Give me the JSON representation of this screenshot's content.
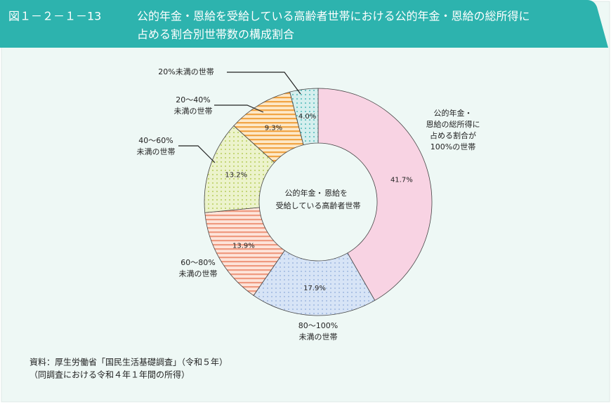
{
  "chart_data": {
    "type": "donut",
    "figure_number": "図１－２－１－13",
    "title_lines": [
      "公的年金・恩給を受給している高齢者世帯における公的年金・恩給の総所得に",
      "占める割合別世帯数の構成割合"
    ],
    "center_label": [
      "公的年金・",
      "恩給を",
      "受給している高齢者世帯"
    ],
    "categories": [
      [
        "公的年金・",
        "恩給の総所得に",
        "占める割合が",
        "100%の世帯"
      ],
      [
        "80～100%",
        "未満の世帯"
      ],
      [
        "60～80%",
        "未満の世帯"
      ],
      [
        "40～60%",
        "未満の世帯"
      ],
      [
        "20～40%",
        "未満の世帯"
      ],
      [
        "20%未満の世帯"
      ]
    ],
    "values": [
      41.7,
      17.9,
      13.9,
      13.2,
      9.3,
      4.0
    ],
    "value_labels": [
      "41.7%",
      "17.9%",
      "13.9%",
      "13.2%",
      "9.3%",
      "4.0%"
    ],
    "colors": [
      "#f8d3e3",
      "#d7e4f6",
      "#fde4da",
      "#ecf3cc",
      "#fde8c8",
      "#d5efee"
    ],
    "pattern_colors": [
      "#f8d3e3",
      "#9fb8e0",
      "#ef9a80",
      "#b7cd5c",
      "#f1a545",
      "#4fb9b9"
    ],
    "patterns": [
      "solid",
      "dots",
      "stripes",
      "dots",
      "stripes",
      "dots"
    ],
    "source": [
      "資料：厚生労働省「国民生活基礎調査」（令和５年）",
      "（同調査における令和４年１年間の所得）"
    ]
  }
}
